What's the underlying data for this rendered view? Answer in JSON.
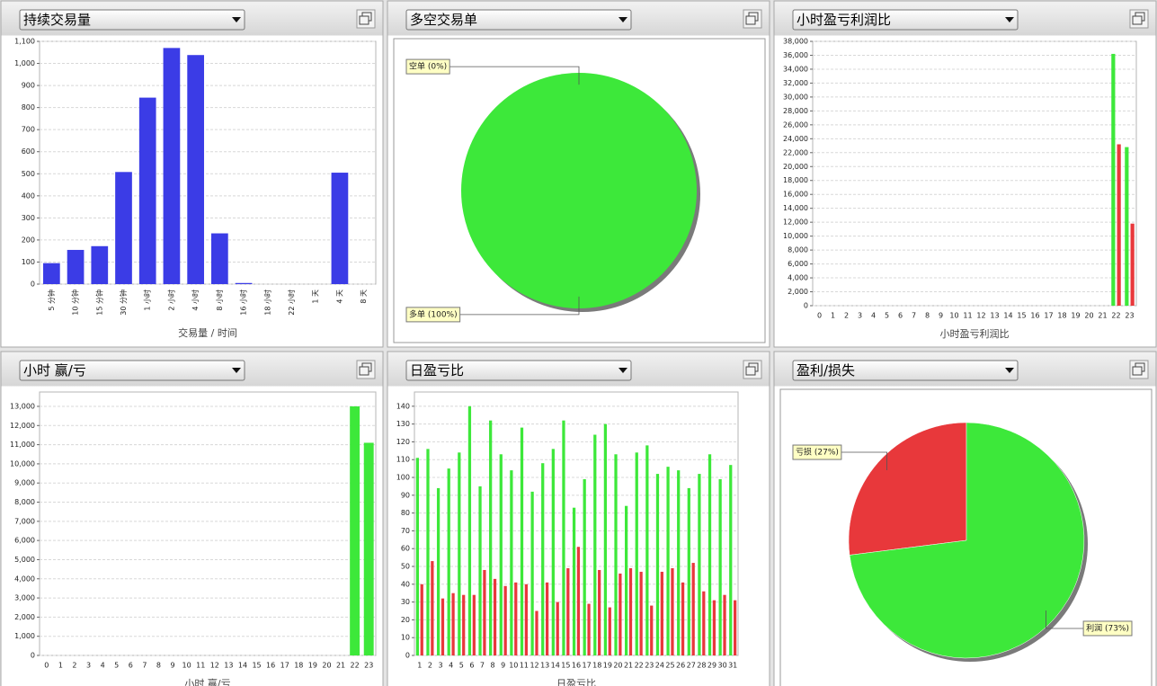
{
  "chart_data": [
    {
      "type": "bar",
      "title": "持续交易量",
      "x_label": "交易量 / 时间",
      "color": "#3b3ce6",
      "grid": true,
      "categories": [
        "5 分钟",
        "10 分钟",
        "15 分钟",
        "30 分钟",
        "1 小时",
        "2 小时",
        "4 小时",
        "8 小时",
        "16 小时",
        "18 小时",
        "22 小时",
        "1 天",
        "4 天",
        "8 天"
      ],
      "values": [
        95,
        155,
        172,
        508,
        845,
        1070,
        1038,
        230,
        5,
        0,
        0,
        0,
        505,
        0
      ],
      "ylim": [
        0,
        1100
      ],
      "yticks": [
        0,
        100,
        200,
        300,
        400,
        500,
        600,
        700,
        800,
        900,
        {
          "value": 1000,
          "label": "1,000"
        },
        {
          "value": 1100,
          "label": "1,100"
        }
      ]
    },
    {
      "type": "pie",
      "title": "多空交易单",
      "categories": [
        "空单",
        "多单"
      ],
      "values": [
        0,
        100
      ],
      "value_labels": [
        "空单 (0%)",
        "多单 (100%)"
      ],
      "colors": [
        "#3de83a",
        "#3de83a"
      ]
    },
    {
      "type": "bar",
      "title": "小时盈亏利润比",
      "x_label": "小时盈亏利润比",
      "grid": true,
      "categories": [
        "0",
        "1",
        "2",
        "3",
        "4",
        "5",
        "6",
        "7",
        "8",
        "9",
        "10",
        "11",
        "12",
        "13",
        "14",
        "15",
        "16",
        "17",
        "18",
        "19",
        "20",
        "21",
        "22",
        "23"
      ],
      "series": [
        {
          "color": "#3de83a",
          "values": [
            0,
            0,
            0,
            0,
            0,
            0,
            0,
            0,
            0,
            0,
            0,
            0,
            0,
            0,
            0,
            0,
            0,
            0,
            0,
            0,
            0,
            0,
            36200,
            22800
          ]
        },
        {
          "color": "#e8383b",
          "values": [
            0,
            0,
            0,
            0,
            0,
            0,
            0,
            0,
            0,
            0,
            0,
            0,
            0,
            0,
            0,
            0,
            0,
            0,
            0,
            0,
            0,
            0,
            23200,
            11800
          ]
        }
      ],
      "ylim": [
        0,
        38000
      ],
      "yticks": [
        0,
        {
          "value": 2000,
          "label": "2,000"
        },
        {
          "value": 4000,
          "label": "4,000"
        },
        {
          "value": 6000,
          "label": "6,000"
        },
        {
          "value": 8000,
          "label": "8,000"
        },
        {
          "value": 10000,
          "label": "10,000"
        },
        {
          "value": 12000,
          "label": "12,000"
        },
        {
          "value": 14000,
          "label": "14,000"
        },
        {
          "value": 16000,
          "label": "16,000"
        },
        {
          "value": 18000,
          "label": "18,000"
        },
        {
          "value": 20000,
          "label": "20,000"
        },
        {
          "value": 22000,
          "label": "22,000"
        },
        {
          "value": 24000,
          "label": "24,000"
        },
        {
          "value": 26000,
          "label": "26,000"
        },
        {
          "value": 28000,
          "label": "28,000"
        },
        {
          "value": 30000,
          "label": "30,000"
        },
        {
          "value": 32000,
          "label": "32,000"
        },
        {
          "value": 34000,
          "label": "34,000"
        },
        {
          "value": 36000,
          "label": "36,000"
        },
        {
          "value": 38000,
          "label": "38,000"
        }
      ]
    },
    {
      "type": "bar",
      "title": "小时 赢/亏",
      "x_label": "小时 赢/亏",
      "color": "#3de83a",
      "grid": true,
      "categories": [
        "0",
        "1",
        "2",
        "3",
        "4",
        "5",
        "6",
        "7",
        "8",
        "9",
        "10",
        "11",
        "12",
        "13",
        "14",
        "15",
        "16",
        "17",
        "18",
        "19",
        "20",
        "21",
        "22",
        "23"
      ],
      "values": [
        0,
        0,
        0,
        0,
        0,
        0,
        0,
        0,
        0,
        0,
        0,
        0,
        0,
        0,
        0,
        0,
        0,
        0,
        0,
        0,
        0,
        0,
        13000,
        11100
      ],
      "ylim": [
        0,
        13750
      ],
      "yticks": [
        0,
        {
          "value": 1000,
          "label": "1,000"
        },
        {
          "value": 2000,
          "label": "2,000"
        },
        {
          "value": 3000,
          "label": "3,000"
        },
        {
          "value": 4000,
          "label": "4,000"
        },
        {
          "value": 5000,
          "label": "5,000"
        },
        {
          "value": 6000,
          "label": "6,000"
        },
        {
          "value": 7000,
          "label": "7,000"
        },
        {
          "value": 8000,
          "label": "8,000"
        },
        {
          "value": 9000,
          "label": "9,000"
        },
        {
          "value": 10000,
          "label": "10,000"
        },
        {
          "value": 11000,
          "label": "11,000"
        },
        {
          "value": 12000,
          "label": "12,000"
        },
        {
          "value": 13000,
          "label": "13,000"
        }
      ]
    },
    {
      "type": "bar",
      "title": "日盈亏比",
      "x_label": "日盈亏比",
      "grid": true,
      "categories": [
        "1",
        "2",
        "3",
        "4",
        "5",
        "6",
        "7",
        "8",
        "9",
        "10",
        "11",
        "12",
        "13",
        "14",
        "15",
        "16",
        "17",
        "18",
        "19",
        "20",
        "21",
        "22",
        "23",
        "24",
        "25",
        "26",
        "27",
        "28",
        "29",
        "30",
        "31"
      ],
      "series": [
        {
          "color": "#3de83a",
          "values": [
            111,
            116,
            94,
            105,
            114,
            140,
            95,
            132,
            113,
            104,
            128,
            92,
            108,
            116,
            132,
            83,
            99,
            124,
            130,
            113,
            84,
            114,
            118,
            102,
            106,
            104,
            94,
            102,
            113,
            99,
            107
          ]
        },
        {
          "color": "#e8383b",
          "values": [
            40,
            53,
            32,
            35,
            34,
            34,
            48,
            43,
            39,
            41,
            40,
            25,
            41,
            30,
            49,
            61,
            29,
            48,
            27,
            46,
            49,
            47,
            28,
            47,
            49,
            41,
            52,
            36,
            31,
            34,
            31
          ]
        }
      ],
      "ylim": [
        0,
        148
      ],
      "yticks": [
        0,
        10,
        20,
        30,
        40,
        50,
        60,
        70,
        80,
        90,
        100,
        110,
        120,
        130,
        140
      ]
    },
    {
      "type": "pie",
      "title": "盈利/损失",
      "categories": [
        "亏损",
        "利润"
      ],
      "values": [
        27,
        73
      ],
      "value_labels": [
        "亏损 (27%)",
        "利润 (73%)"
      ],
      "colors": [
        "#e8383b",
        "#3de83a"
      ]
    }
  ]
}
